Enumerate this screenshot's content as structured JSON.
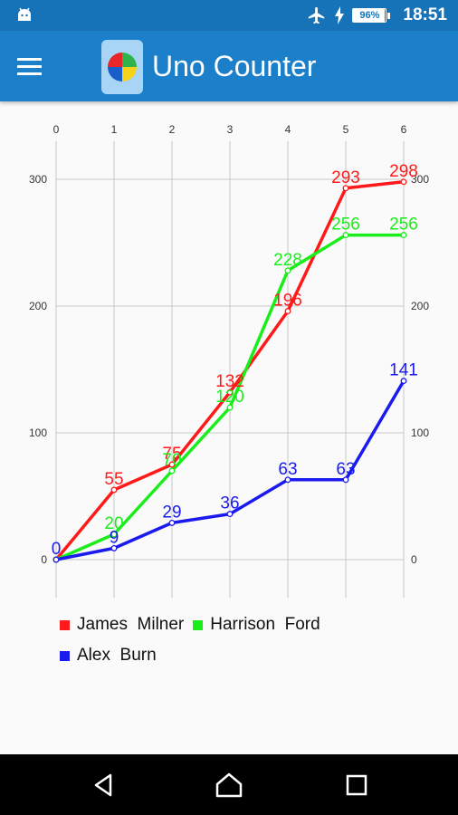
{
  "status_bar": {
    "time": "18:51",
    "battery_percent": 96,
    "battery_label": "96%",
    "icons": [
      "android-icon",
      "airplane-mode-icon",
      "charging-icon",
      "battery-icon"
    ]
  },
  "app_bar": {
    "title": "Uno Counter",
    "icons": [
      "menu-icon",
      "app-logo-icon"
    ],
    "color": "#1b7fc9"
  },
  "chart_data": {
    "type": "line",
    "x": [
      0,
      1,
      2,
      3,
      4,
      5,
      6
    ],
    "xlim": [
      0,
      6
    ],
    "ylim": [
      -30,
      330
    ],
    "yticks": [
      0,
      100,
      200,
      300
    ],
    "grid": true,
    "legend_position": "bottom-left",
    "series": [
      {
        "name": "James  Milner",
        "color": "#ff1a1a",
        "values": [
          0,
          55,
          75,
          132,
          196,
          293,
          298
        ]
      },
      {
        "name": "Harrison  Ford",
        "color": "#1aee1a",
        "values": [
          0,
          20,
          70,
          120,
          228,
          256,
          256
        ]
      },
      {
        "name": "Alex  Burn",
        "color": "#1a1aee",
        "values": [
          0,
          9,
          29,
          36,
          63,
          63,
          141
        ]
      }
    ],
    "data_labels": [
      [
        null,
        "55",
        "75",
        "132",
        "196",
        "293",
        "298"
      ],
      [
        null,
        "20",
        "70",
        "120",
        "228",
        "256",
        "256"
      ],
      [
        "0",
        "9",
        "29",
        "36",
        "63",
        "63",
        "141"
      ]
    ]
  },
  "nav_bar": {
    "icons": [
      "back-icon",
      "home-icon",
      "recents-icon"
    ]
  }
}
